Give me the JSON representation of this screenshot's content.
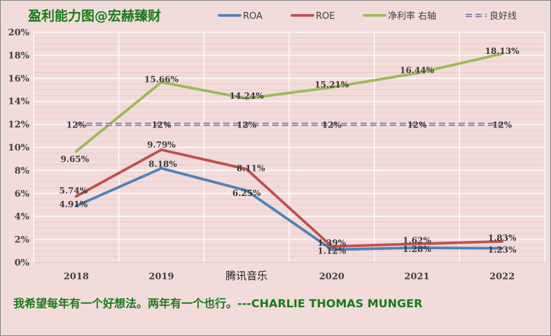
{
  "chart_data": {
    "type": "line",
    "title": "盈利能力图@宏赫臻财",
    "categories": [
      "2018",
      "2019",
      "腾讯音乐",
      "2020",
      "2021",
      "2022"
    ],
    "ylim": [
      0,
      20
    ],
    "yticks": [
      "0%",
      "2%",
      "4%",
      "6%",
      "8%",
      "10%",
      "12%",
      "14%",
      "16%",
      "18%",
      "20%"
    ],
    "grid": true,
    "legend_position": "top",
    "series": [
      {
        "name": "ROA",
        "color": "#4f81bd",
        "values": [
          4.91,
          8.18,
          6.25,
          1.12,
          1.28,
          1.23
        ],
        "labels": [
          "4.91%",
          "8.18%",
          "6.25%",
          "1.12%",
          "1.28%",
          "1.23%"
        ]
      },
      {
        "name": "ROE",
        "color": "#c0504d",
        "values": [
          5.74,
          9.79,
          8.11,
          1.39,
          1.62,
          1.83
        ],
        "labels": [
          "5.74%",
          "9.79%",
          "8.11%",
          "1.39%",
          "1.62%",
          "1.83%"
        ]
      },
      {
        "name": "净利率 右轴",
        "color": "#9bbb59",
        "values": [
          9.65,
          15.66,
          14.24,
          15.21,
          16.44,
          18.13
        ],
        "labels": [
          "9.65%",
          "15.66%",
          "14.24%",
          "15.21%",
          "16.44%",
          "18.13%"
        ]
      },
      {
        "name": "良好线",
        "color": "#8064a2",
        "dashed": true,
        "values": [
          12,
          12,
          12,
          12,
          12,
          12
        ],
        "labels": [
          "12%",
          "12%",
          "12%",
          "12%",
          "12%",
          "12%"
        ]
      }
    ]
  },
  "footer": {
    "quote": "我希望每年有一个好想法。两年有一个也行。---CHARLIE THOMAS MUNGER"
  }
}
